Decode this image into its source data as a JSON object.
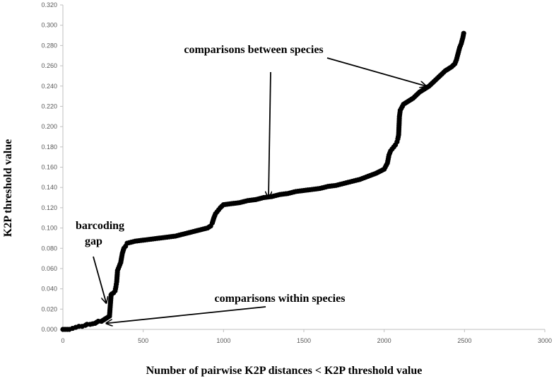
{
  "chart_data": {
    "type": "scatter",
    "title": "",
    "xlabel": "Number of pairwise K2P distances < K2P threshold value",
    "ylabel": "K2P threshold value",
    "xlim": [
      0,
      3000
    ],
    "ylim": [
      0,
      0.32
    ],
    "x_ticks": [
      "0",
      "500",
      "1000",
      "1500",
      "2000",
      "2500",
      "3000"
    ],
    "y_ticks": [
      "0.000",
      "0.020",
      "0.040",
      "0.060",
      "0.080",
      "0.100",
      "0.120",
      "0.140",
      "0.160",
      "0.180",
      "0.200",
      "0.220",
      "0.240",
      "0.260",
      "0.280",
      "0.300",
      "0.320"
    ],
    "grid": false,
    "legend": "none",
    "marker_color": "#000000",
    "series": [
      {
        "x": [
          0,
          40,
          60,
          80,
          100,
          120,
          140,
          150,
          170,
          200,
          220,
          240,
          250,
          260,
          270,
          280,
          290,
          300,
          305,
          315,
          325,
          330,
          335,
          340,
          345,
          350,
          360,
          370,
          380,
          390,
          400,
          450,
          500,
          550,
          600,
          650,
          700,
          750,
          800,
          850,
          900,
          920,
          930,
          940,
          950,
          960,
          970,
          980,
          1000,
          1050,
          1100,
          1150,
          1200,
          1250,
          1300,
          1350,
          1400,
          1450,
          1500,
          1550,
          1600,
          1650,
          1700,
          1750,
          1800,
          1850,
          1900,
          1950,
          2000,
          2020,
          2030,
          2040,
          2050,
          2060,
          2070,
          2080,
          2085,
          2090,
          2095,
          2100,
          2120,
          2150,
          2180,
          2200,
          2220,
          2240,
          2260,
          2280,
          2300,
          2320,
          2340,
          2360,
          2380,
          2400,
          2420,
          2440,
          2450,
          2460,
          2470,
          2480,
          2490,
          2495
        ],
        "y": [
          0.0,
          0.0,
          0.001,
          0.002,
          0.003,
          0.003,
          0.004,
          0.005,
          0.005,
          0.006,
          0.008,
          0.008,
          0.009,
          0.01,
          0.011,
          0.012,
          0.013,
          0.034,
          0.035,
          0.036,
          0.038,
          0.042,
          0.047,
          0.058,
          0.06,
          0.062,
          0.066,
          0.075,
          0.08,
          0.082,
          0.085,
          0.087,
          0.088,
          0.089,
          0.09,
          0.091,
          0.092,
          0.094,
          0.096,
          0.098,
          0.1,
          0.102,
          0.105,
          0.11,
          0.114,
          0.116,
          0.118,
          0.12,
          0.123,
          0.124,
          0.125,
          0.127,
          0.128,
          0.13,
          0.131,
          0.133,
          0.134,
          0.136,
          0.137,
          0.138,
          0.139,
          0.141,
          0.142,
          0.144,
          0.146,
          0.148,
          0.151,
          0.154,
          0.158,
          0.164,
          0.172,
          0.176,
          0.178,
          0.18,
          0.182,
          0.185,
          0.188,
          0.192,
          0.21,
          0.216,
          0.222,
          0.225,
          0.228,
          0.231,
          0.234,
          0.236,
          0.238,
          0.24,
          0.243,
          0.246,
          0.249,
          0.252,
          0.255,
          0.257,
          0.259,
          0.262,
          0.266,
          0.272,
          0.278,
          0.282,
          0.288,
          0.292
        ]
      }
    ],
    "annotations": [
      {
        "text": "comparisons between species",
        "arrow_targets": [
          [
            2260,
            0.24
          ],
          [
            1280,
            0.13
          ]
        ]
      },
      {
        "text": "barcoding",
        "arrow_targets": []
      },
      {
        "text": "gap",
        "arrow_targets": [
          [
            270,
            0.026
          ]
        ]
      },
      {
        "text": "comparisons within species",
        "arrow_targets": [
          [
            270,
            0.006
          ]
        ]
      }
    ]
  }
}
